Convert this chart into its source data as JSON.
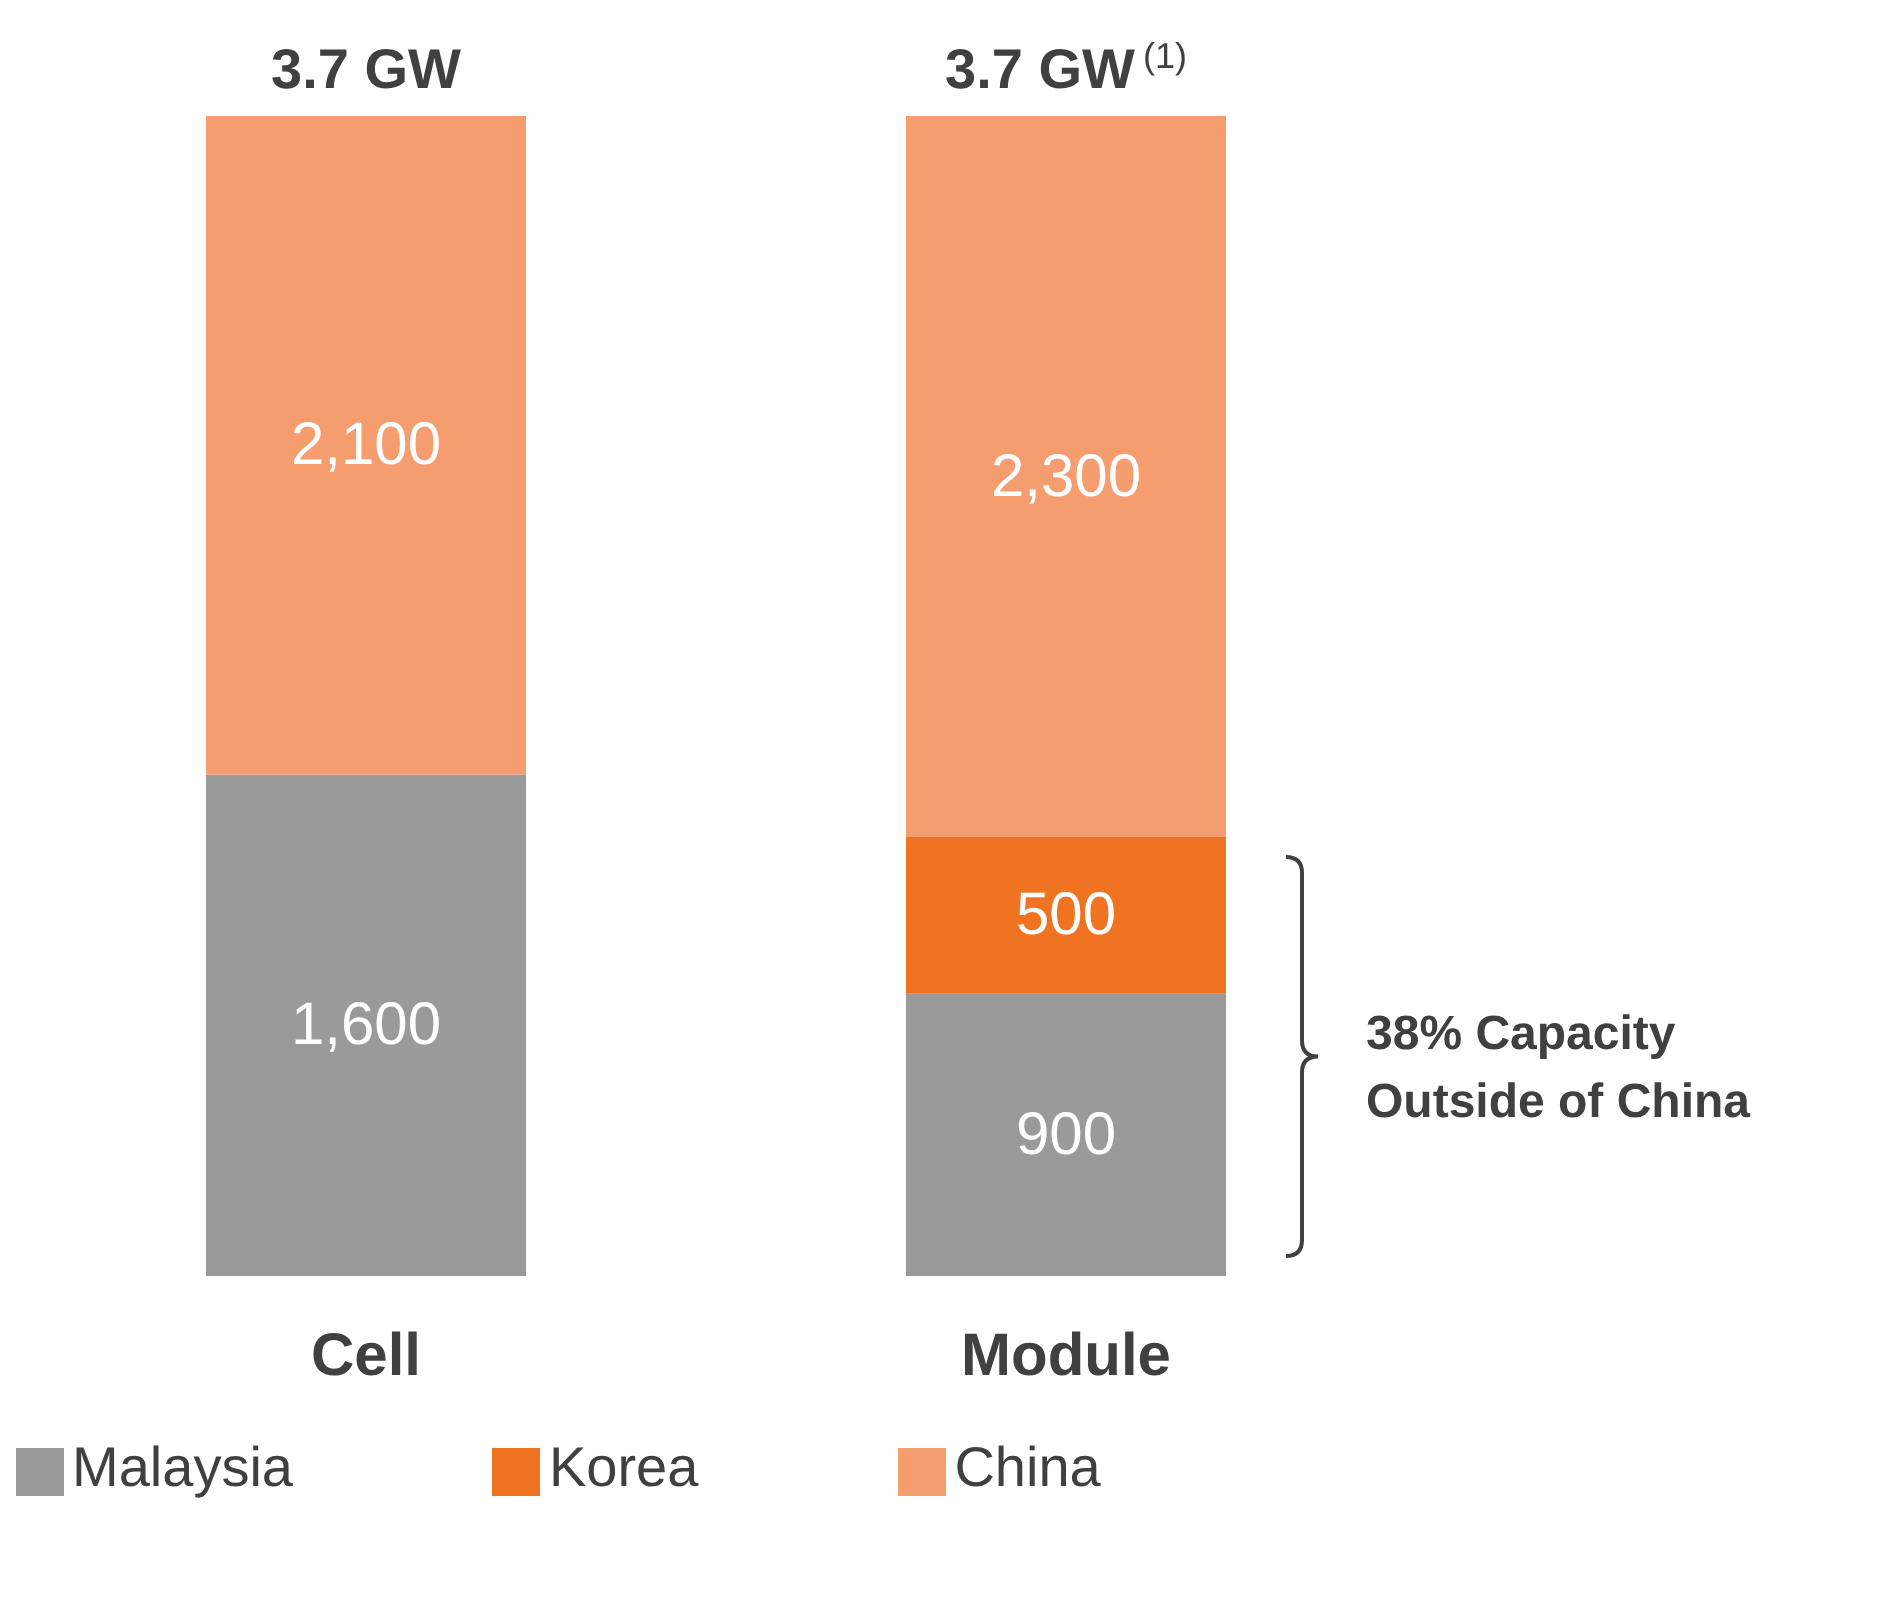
{
  "chart_data": {
    "type": "bar",
    "stacked": true,
    "categories": [
      "Cell",
      "Module"
    ],
    "series": [
      {
        "name": "Malaysia",
        "color": "#9a9a9b",
        "values": [
          1600,
          900
        ],
        "value_labels": [
          "1,600",
          "900"
        ]
      },
      {
        "name": "Korea",
        "color": "#f07322",
        "values": [
          null,
          500
        ],
        "value_labels": [
          null,
          "500"
        ]
      },
      {
        "name": "China",
        "color": "#f59d6e",
        "values": [
          2100,
          2300
        ],
        "value_labels": [
          "2,100",
          "2,300"
        ]
      }
    ],
    "annotations": [
      "38% Capacity Outside of China",
      {
        "text": "3.7 GW",
        "x": "Cell",
        "y": 3700
      },
      {
        "text": "3.7 GW$^{(1)}$",
        "x": "Module",
        "y": 3700
      }
    ],
    "legend": "bottom",
    "grid": false
  }
}
